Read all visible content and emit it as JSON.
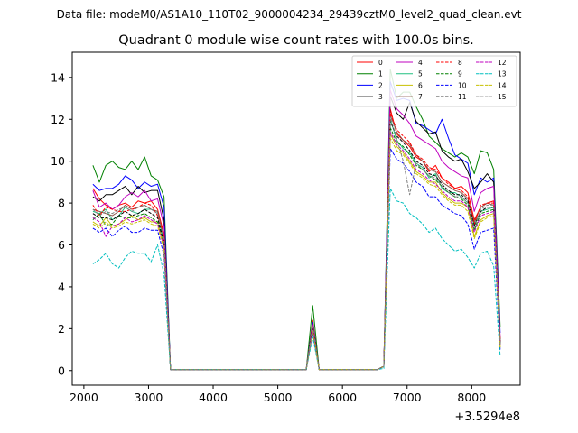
{
  "figure": {
    "suptitle": "Data file: modeM0/AS1A10_110T02_9000004234_29439cztM0_level2_quad_clean.evt",
    "title": "Quadrant 0 module wise count rates with 100.0s bins.",
    "offset_label": "+3.5294e8"
  },
  "chart_data": {
    "type": "line",
    "title": "Quadrant 0 module wise count rates with 100.0s bins.",
    "xlabel": "",
    "ylabel": "",
    "xlim": [
      1820,
      8750
    ],
    "ylim": [
      -0.7,
      15.2
    ],
    "x_ticks": [
      2000,
      3000,
      4000,
      5000,
      6000,
      7000,
      8000
    ],
    "x_tick_labels": [
      "2000",
      "3000",
      "4000",
      "5000",
      "6000",
      "7000",
      "8000"
    ],
    "y_ticks": [
      0,
      2,
      4,
      6,
      8,
      10,
      12,
      14
    ],
    "y_tick_labels": [
      "0",
      "2",
      "4",
      "6",
      "8",
      "10",
      "12",
      "14"
    ],
    "grid": false,
    "legend_position": "top-right",
    "legend_columns": 4,
    "x": [
      2140,
      2240,
      2340,
      2440,
      2540,
      2640,
      2740,
      2840,
      2940,
      3040,
      3140,
      3240,
      3340,
      3440,
      3540,
      3640,
      3740,
      3840,
      3940,
      4040,
      4140,
      4240,
      4340,
      4440,
      4540,
      4640,
      4740,
      4840,
      4940,
      5040,
      5140,
      5240,
      5340,
      5440,
      5540,
      5640,
      5740,
      5840,
      5940,
      6040,
      6140,
      6240,
      6340,
      6440,
      6540,
      6640,
      6740,
      6840,
      6940,
      7040,
      7140,
      7240,
      7340,
      7440,
      7540,
      7640,
      7740,
      7840,
      7940,
      8040,
      8140,
      8240,
      8340,
      8440
    ],
    "series": [
      {
        "name": "0",
        "color": "#ff0000",
        "dash": "solid",
        "values": [
          8.7,
          8.2,
          7.9,
          7.7,
          7.9,
          8.0,
          7.8,
          8.1,
          8.0,
          8.1,
          7.7,
          6.5,
          0.05,
          0.05,
          0.05,
          0.05,
          0.05,
          0.05,
          0.05,
          0.05,
          0.05,
          0.05,
          0.05,
          0.05,
          0.05,
          0.05,
          0.05,
          0.05,
          0.05,
          0.05,
          0.05,
          0.05,
          0.05,
          0.05,
          2.4,
          0.05,
          0.05,
          0.05,
          0.05,
          0.05,
          0.05,
          0.05,
          0.05,
          0.05,
          0.05,
          0.2,
          12.5,
          11.3,
          11.0,
          10.7,
          10.2,
          10.0,
          9.5,
          9.8,
          9.2,
          9.0,
          8.7,
          8.8,
          8.5,
          7.2,
          7.8,
          8.0,
          8.1,
          1.5
        ]
      },
      {
        "name": "1",
        "color": "#008000",
        "dash": "solid",
        "values": [
          9.8,
          9.0,
          9.8,
          10.0,
          9.7,
          9.6,
          10.0,
          9.6,
          10.2,
          9.3,
          9.1,
          8.3,
          0.05,
          0.05,
          0.05,
          0.05,
          0.05,
          0.05,
          0.05,
          0.05,
          0.05,
          0.05,
          0.05,
          0.05,
          0.05,
          0.05,
          0.05,
          0.05,
          0.05,
          0.05,
          0.05,
          0.05,
          0.05,
          0.05,
          3.1,
          0.05,
          0.05,
          0.05,
          0.05,
          0.05,
          0.05,
          0.05,
          0.05,
          0.05,
          0.05,
          0.2,
          14.4,
          13.0,
          13.3,
          13.3,
          12.6,
          12.0,
          11.2,
          10.9,
          10.6,
          10.4,
          10.2,
          10.4,
          10.2,
          9.4,
          10.5,
          10.4,
          9.6,
          2.1
        ]
      },
      {
        "name": "2",
        "color": "#0000ff",
        "dash": "solid",
        "values": [
          8.9,
          8.6,
          8.7,
          8.7,
          8.9,
          9.3,
          9.1,
          8.7,
          9.0,
          8.8,
          8.9,
          7.8,
          0.05,
          0.05,
          0.05,
          0.05,
          0.05,
          0.05,
          0.05,
          0.05,
          0.05,
          0.05,
          0.05,
          0.05,
          0.05,
          0.05,
          0.05,
          0.05,
          0.05,
          0.05,
          0.05,
          0.05,
          0.05,
          0.05,
          2.3,
          0.05,
          0.05,
          0.05,
          0.05,
          0.05,
          0.05,
          0.05,
          0.05,
          0.05,
          0.05,
          0.2,
          13.8,
          12.9,
          13.0,
          12.9,
          11.8,
          11.7,
          11.5,
          11.3,
          12.0,
          11.1,
          10.3,
          10.1,
          9.9,
          8.4,
          9.2,
          9.0,
          9.2,
          1.8
        ]
      },
      {
        "name": "3",
        "color": "#000000",
        "dash": "solid",
        "values": [
          8.3,
          8.1,
          8.4,
          8.4,
          8.6,
          8.8,
          8.4,
          8.8,
          8.5,
          8.6,
          8.6,
          7.2,
          0.05,
          0.05,
          0.05,
          0.05,
          0.05,
          0.05,
          0.05,
          0.05,
          0.05,
          0.05,
          0.05,
          0.05,
          0.05,
          0.05,
          0.05,
          0.05,
          0.05,
          0.05,
          0.05,
          0.05,
          0.05,
          0.05,
          2.2,
          0.05,
          0.05,
          0.05,
          0.05,
          0.05,
          0.05,
          0.05,
          0.05,
          0.05,
          0.05,
          0.2,
          13.1,
          12.3,
          12.0,
          12.8,
          11.9,
          11.6,
          11.3,
          11.4,
          10.5,
          10.2,
          10.0,
          10.1,
          9.5,
          8.7,
          9.0,
          9.4,
          9.0,
          1.4
        ]
      },
      {
        "name": "4",
        "color": "#bf00bf",
        "dash": "solid",
        "values": [
          8.6,
          7.8,
          8.0,
          7.7,
          7.9,
          8.3,
          8.5,
          8.3,
          8.6,
          8.1,
          8.2,
          6.9,
          0.05,
          0.05,
          0.05,
          0.05,
          0.05,
          0.05,
          0.05,
          0.05,
          0.05,
          0.05,
          0.05,
          0.05,
          0.05,
          0.05,
          0.05,
          0.05,
          0.05,
          0.05,
          0.05,
          0.05,
          0.05,
          0.05,
          2.2,
          0.05,
          0.05,
          0.05,
          0.05,
          0.05,
          0.05,
          0.05,
          0.05,
          0.05,
          0.05,
          0.2,
          13.4,
          12.5,
          12.2,
          11.8,
          11.2,
          11.0,
          10.8,
          10.6,
          10.0,
          9.7,
          9.5,
          9.3,
          9.2,
          7.6,
          8.5,
          8.7,
          8.8,
          1.6
        ]
      },
      {
        "name": "5",
        "color": "#20c080",
        "dash": "solid",
        "values": [
          7.6,
          7.5,
          7.7,
          7.2,
          7.4,
          7.8,
          7.6,
          7.5,
          7.7,
          7.7,
          7.6,
          6.0,
          0.05,
          0.05,
          0.05,
          0.05,
          0.05,
          0.05,
          0.05,
          0.05,
          0.05,
          0.05,
          0.05,
          0.05,
          0.05,
          0.05,
          0.05,
          0.05,
          0.05,
          0.05,
          0.05,
          0.05,
          0.05,
          0.05,
          2.0,
          0.05,
          0.05,
          0.05,
          0.05,
          0.05,
          0.05,
          0.05,
          0.05,
          0.05,
          0.05,
          0.2,
          12.0,
          11.0,
          10.6,
          10.4,
          9.9,
          9.7,
          9.2,
          9.4,
          8.7,
          8.5,
          8.5,
          8.3,
          8.0,
          7.0,
          7.6,
          7.7,
          7.8,
          1.2
        ]
      },
      {
        "name": "6",
        "color": "#c8c000",
        "dash": "solid",
        "values": [
          7.1,
          6.9,
          7.3,
          6.9,
          7.0,
          7.2,
          7.4,
          7.2,
          7.3,
          7.1,
          7.1,
          5.9,
          0.05,
          0.05,
          0.05,
          0.05,
          0.05,
          0.05,
          0.05,
          0.05,
          0.05,
          0.05,
          0.05,
          0.05,
          0.05,
          0.05,
          0.05,
          0.05,
          0.05,
          0.05,
          0.05,
          0.05,
          0.05,
          0.05,
          1.9,
          0.05,
          0.05,
          0.05,
          0.05,
          0.05,
          0.05,
          0.05,
          0.05,
          0.05,
          0.05,
          0.2,
          11.3,
          10.7,
          10.4,
          10.0,
          9.5,
          9.3,
          9.0,
          9.0,
          8.5,
          8.2,
          8.0,
          8.0,
          7.8,
          6.4,
          7.2,
          7.4,
          7.5,
          1.1
        ]
      },
      {
        "name": "7",
        "color": "#8c564b",
        "dash": "solid",
        "values": [
          7.7,
          7.6,
          7.5,
          7.4,
          7.6,
          7.9,
          7.7,
          7.8,
          7.9,
          7.7,
          7.6,
          6.3,
          0.05,
          0.05,
          0.05,
          0.05,
          0.05,
          0.05,
          0.05,
          0.05,
          0.05,
          0.05,
          0.05,
          0.05,
          0.05,
          0.05,
          0.05,
          0.05,
          0.05,
          0.05,
          0.05,
          0.05,
          0.05,
          0.05,
          2.1,
          0.05,
          0.05,
          0.05,
          0.05,
          0.05,
          0.05,
          0.05,
          0.05,
          0.05,
          0.05,
          0.2,
          12.2,
          11.4,
          11.0,
          10.8,
          10.3,
          10.0,
          9.6,
          9.5,
          9.0,
          8.8,
          8.6,
          8.5,
          8.2,
          7.1,
          7.8,
          8.0,
          7.9,
          1.3
        ]
      },
      {
        "name": "8",
        "color": "#ff0000",
        "dash": "dashed",
        "values": [
          7.9,
          7.4,
          7.8,
          7.7,
          7.6,
          7.6,
          7.7,
          7.8,
          8.0,
          7.9,
          7.4,
          6.4,
          0.05,
          0.05,
          0.05,
          0.05,
          0.05,
          0.05,
          0.05,
          0.05,
          0.05,
          0.05,
          0.05,
          0.05,
          0.05,
          0.05,
          0.05,
          0.05,
          0.05,
          0.05,
          0.05,
          0.05,
          0.05,
          0.05,
          2.1,
          0.05,
          0.05,
          0.05,
          0.05,
          0.05,
          0.05,
          0.05,
          0.05,
          0.05,
          0.05,
          0.2,
          12.3,
          11.5,
          11.2,
          10.9,
          10.3,
          10.1,
          9.7,
          9.6,
          9.2,
          8.9,
          8.7,
          8.6,
          8.3,
          7.0,
          7.9,
          8.0,
          8.0,
          1.4
        ]
      },
      {
        "name": "9",
        "color": "#008000",
        "dash": "dashed",
        "values": [
          7.2,
          7.5,
          6.9,
          7.0,
          7.4,
          7.3,
          7.3,
          7.4,
          7.5,
          7.3,
          7.1,
          6.1,
          0.05,
          0.05,
          0.05,
          0.05,
          0.05,
          0.05,
          0.05,
          0.05,
          0.05,
          0.05,
          0.05,
          0.05,
          0.05,
          0.05,
          0.05,
          0.05,
          0.05,
          0.05,
          0.05,
          0.05,
          0.05,
          0.05,
          2.0,
          0.05,
          0.05,
          0.05,
          0.05,
          0.05,
          0.05,
          0.05,
          0.05,
          0.05,
          0.05,
          0.2,
          11.6,
          10.9,
          10.7,
          10.3,
          9.8,
          9.6,
          9.3,
          9.1,
          8.8,
          8.5,
          8.3,
          8.2,
          7.9,
          6.7,
          7.5,
          7.6,
          7.7,
          1.2
        ]
      },
      {
        "name": "10",
        "color": "#0000ff",
        "dash": "dashed",
        "values": [
          6.8,
          6.6,
          6.8,
          6.4,
          6.7,
          6.9,
          6.6,
          6.6,
          6.8,
          6.7,
          6.7,
          5.5,
          0.05,
          0.05,
          0.05,
          0.05,
          0.05,
          0.05,
          0.05,
          0.05,
          0.05,
          0.05,
          0.05,
          0.05,
          0.05,
          0.05,
          0.05,
          0.05,
          0.05,
          0.05,
          0.05,
          0.05,
          0.05,
          0.05,
          1.8,
          0.05,
          0.05,
          0.05,
          0.05,
          0.05,
          0.05,
          0.05,
          0.05,
          0.05,
          0.05,
          0.2,
          10.6,
          10.1,
          9.9,
          9.5,
          9.0,
          8.8,
          8.3,
          8.3,
          7.9,
          7.7,
          7.5,
          7.4,
          7.0,
          5.8,
          6.6,
          6.7,
          6.8,
          1.0
        ]
      },
      {
        "name": "11",
        "color": "#000000",
        "dash": "dashed",
        "values": [
          7.5,
          7.3,
          7.3,
          7.2,
          7.4,
          7.6,
          7.4,
          7.5,
          7.7,
          7.5,
          7.3,
          6.1,
          0.05,
          0.05,
          0.05,
          0.05,
          0.05,
          0.05,
          0.05,
          0.05,
          0.05,
          0.05,
          0.05,
          0.05,
          0.05,
          0.05,
          0.05,
          0.05,
          0.05,
          0.05,
          0.05,
          0.05,
          0.05,
          0.05,
          2.0,
          0.05,
          0.05,
          0.05,
          0.05,
          0.05,
          0.05,
          0.05,
          0.05,
          0.05,
          0.05,
          0.2,
          11.9,
          11.2,
          10.9,
          10.5,
          10.0,
          9.8,
          9.4,
          9.3,
          8.9,
          8.6,
          8.4,
          8.4,
          8.1,
          6.9,
          7.6,
          7.8,
          7.8,
          1.3
        ]
      },
      {
        "name": "12",
        "color": "#bf00bf",
        "dash": "dashed",
        "values": [
          7.3,
          7.1,
          6.4,
          6.9,
          7.0,
          7.3,
          7.1,
          7.2,
          7.4,
          7.2,
          7.0,
          5.9,
          0.05,
          0.05,
          0.05,
          0.05,
          0.05,
          0.05,
          0.05,
          0.05,
          0.05,
          0.05,
          0.05,
          0.05,
          0.05,
          0.05,
          0.05,
          0.05,
          0.05,
          0.05,
          0.05,
          0.05,
          0.05,
          0.05,
          1.9,
          0.05,
          0.05,
          0.05,
          0.05,
          0.05,
          0.05,
          0.05,
          0.05,
          0.05,
          0.05,
          0.2,
          11.4,
          10.8,
          10.5,
          10.1,
          9.6,
          9.4,
          9.1,
          8.9,
          8.6,
          8.3,
          8.1,
          8.1,
          7.8,
          6.6,
          7.4,
          7.5,
          7.6,
          1.2
        ]
      },
      {
        "name": "13",
        "color": "#00bfbf",
        "dash": "dashed",
        "values": [
          5.1,
          5.3,
          5.6,
          5.1,
          4.9,
          5.4,
          5.7,
          5.6,
          5.6,
          5.2,
          6.0,
          4.6,
          0.05,
          0.05,
          0.05,
          0.05,
          0.05,
          0.05,
          0.05,
          0.05,
          0.05,
          0.05,
          0.05,
          0.05,
          0.05,
          0.05,
          0.05,
          0.05,
          0.05,
          0.05,
          0.05,
          0.05,
          0.05,
          0.05,
          1.6,
          0.05,
          0.05,
          0.05,
          0.05,
          0.05,
          0.05,
          0.05,
          0.05,
          0.05,
          0.05,
          0.1,
          8.7,
          8.1,
          8.0,
          7.5,
          7.3,
          7.0,
          6.6,
          6.8,
          6.3,
          6.0,
          5.7,
          5.8,
          5.4,
          4.9,
          5.6,
          5.7,
          5.0,
          0.7
        ]
      },
      {
        "name": "14",
        "color": "#c8c000",
        "dash": "dashed",
        "values": [
          7.0,
          6.8,
          7.1,
          6.8,
          6.9,
          7.1,
          7.0,
          7.1,
          7.2,
          7.0,
          6.9,
          5.8,
          0.05,
          0.05,
          0.05,
          0.05,
          0.05,
          0.05,
          0.05,
          0.05,
          0.05,
          0.05,
          0.05,
          0.05,
          0.05,
          0.05,
          0.05,
          0.05,
          0.05,
          0.05,
          0.05,
          0.05,
          0.05,
          0.05,
          1.9,
          0.05,
          0.05,
          0.05,
          0.05,
          0.05,
          0.05,
          0.05,
          0.05,
          0.05,
          0.05,
          0.2,
          11.1,
          10.5,
          10.3,
          9.9,
          9.4,
          9.2,
          8.9,
          8.8,
          8.4,
          8.1,
          7.9,
          7.9,
          7.6,
          6.3,
          7.1,
          7.3,
          7.4,
          1.1
        ]
      },
      {
        "name": "15",
        "color": "#808080",
        "dash": "dashed",
        "values": [
          7.7,
          7.4,
          7.6,
          7.5,
          7.7,
          7.8,
          7.6,
          7.8,
          7.9,
          7.7,
          7.5,
          6.3,
          0.05,
          0.05,
          0.05,
          0.05,
          0.05,
          0.05,
          0.05,
          0.05,
          0.05,
          0.05,
          0.05,
          0.05,
          0.05,
          0.05,
          0.05,
          0.05,
          0.05,
          0.05,
          0.05,
          0.05,
          0.05,
          0.05,
          2.1,
          0.05,
          0.05,
          0.05,
          0.05,
          0.05,
          0.05,
          0.05,
          0.05,
          0.05,
          0.05,
          0.2,
          12.1,
          11.1,
          10.0,
          8.4,
          9.9,
          9.6,
          9.3,
          9.2,
          8.8,
          8.5,
          8.3,
          8.3,
          8.0,
          6.8,
          7.7,
          7.9,
          7.9,
          1.3
        ]
      }
    ]
  }
}
